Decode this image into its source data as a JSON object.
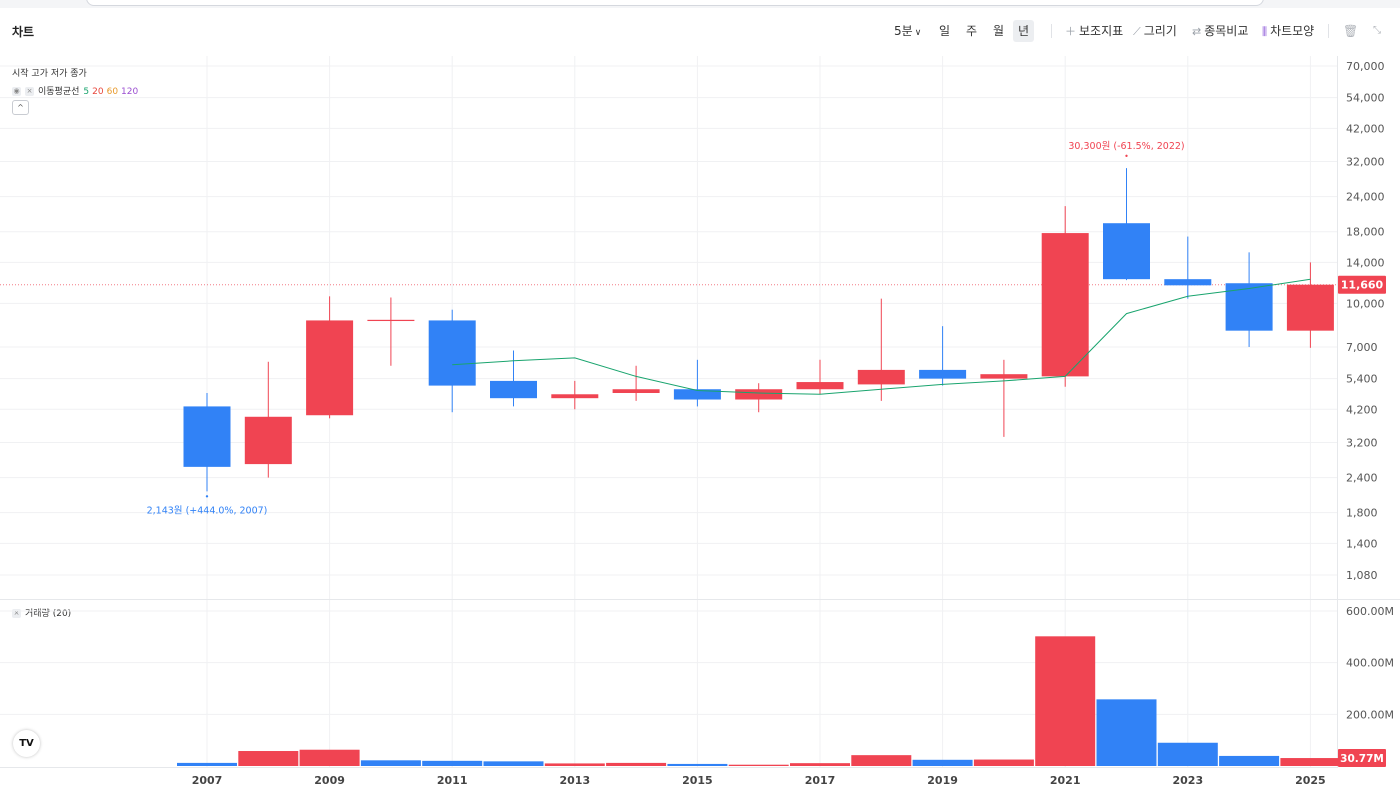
{
  "toolbar": {
    "title": "차트",
    "intervals": [
      "5분",
      "일",
      "주",
      "월",
      "년"
    ],
    "active_interval": "년",
    "tools": [
      {
        "label": "보조지표",
        "icon": "plus-icon"
      },
      {
        "label": "그리기",
        "icon": "pencil-icon"
      },
      {
        "label": "종목비교",
        "icon": "compare-icon"
      },
      {
        "label": "차트모양",
        "icon": "candle-icon"
      }
    ]
  },
  "legend": {
    "ohlc_labels": "시작 고가 저가 종가",
    "ma_label": "이동평균선",
    "ma_periods": [
      "5",
      "20",
      "60",
      "120"
    ],
    "ma_colors": [
      "#19a46e",
      "#e8473c",
      "#e89a2c",
      "#9b4fd1"
    ],
    "volume_label": "거래량 (20)"
  },
  "colors": {
    "up": "#f04452",
    "down": "#3182f6",
    "ma5": "#19a46e",
    "grid": "#f0f1f3"
  },
  "chart_data": {
    "type": "candlestick",
    "y_scale": "log",
    "years": [
      2007,
      2008,
      2009,
      2010,
      2011,
      2012,
      2013,
      2014,
      2015,
      2016,
      2017,
      2018,
      2019,
      2020,
      2021,
      2022,
      2023,
      2024,
      2025
    ],
    "candles": [
      {
        "year": 2007,
        "open": 4300,
        "high": 4800,
        "low": 2143,
        "close": 2620
      },
      {
        "year": 2008,
        "open": 2680,
        "high": 6200,
        "low": 2400,
        "close": 3950
      },
      {
        "year": 2009,
        "open": 4000,
        "high": 10600,
        "low": 3900,
        "close": 8700
      },
      {
        "year": 2010,
        "open": 8700,
        "high": 10500,
        "low": 6000,
        "close": 8700
      },
      {
        "year": 2011,
        "open": 8700,
        "high": 9500,
        "low": 4100,
        "close": 5100
      },
      {
        "year": 2012,
        "open": 5300,
        "high": 6800,
        "low": 4300,
        "close": 4600
      },
      {
        "year": 2013,
        "open": 4600,
        "high": 5300,
        "low": 4200,
        "close": 4750
      },
      {
        "year": 2014,
        "open": 4800,
        "high": 6000,
        "low": 4500,
        "close": 4950
      },
      {
        "year": 2015,
        "open": 4950,
        "high": 6300,
        "low": 4300,
        "close": 4550
      },
      {
        "year": 2016,
        "open": 4550,
        "high": 5200,
        "low": 4100,
        "close": 4950
      },
      {
        "year": 2017,
        "open": 4950,
        "high": 6300,
        "low": 4750,
        "close": 5250
      },
      {
        "year": 2018,
        "open": 5150,
        "high": 10400,
        "low": 4500,
        "close": 5800
      },
      {
        "year": 2019,
        "open": 5800,
        "high": 8300,
        "low": 5100,
        "close": 5400
      },
      {
        "year": 2020,
        "open": 5400,
        "high": 6300,
        "low": 3350,
        "close": 5600
      },
      {
        "year": 2021,
        "open": 5500,
        "high": 22200,
        "low": 5050,
        "close": 17800
      },
      {
        "year": 2022,
        "open": 19300,
        "high": 30300,
        "low": 12100,
        "close": 12200
      },
      {
        "year": 2023,
        "open": 12200,
        "high": 17300,
        "low": 10400,
        "close": 11600
      },
      {
        "year": 2024,
        "open": 11800,
        "high": 15200,
        "low": 7000,
        "close": 8000
      },
      {
        "year": 2025,
        "open": 8000,
        "high": 14000,
        "low": 6950,
        "close": 11660
      }
    ],
    "ma5": [
      null,
      null,
      null,
      null,
      6050,
      6250,
      6400,
      5500,
      4900,
      4800,
      4750,
      4950,
      5150,
      5300,
      5500,
      9200,
      10600,
      11300,
      12200
    ],
    "volume_millions": [
      {
        "year": 2007,
        "value": 12,
        "dir": "down"
      },
      {
        "year": 2008,
        "value": 58,
        "dir": "up"
      },
      {
        "year": 2009,
        "value": 63,
        "dir": "up"
      },
      {
        "year": 2010,
        "value": 22,
        "dir": "down"
      },
      {
        "year": 2011,
        "value": 20,
        "dir": "down"
      },
      {
        "year": 2012,
        "value": 18,
        "dir": "down"
      },
      {
        "year": 2013,
        "value": 10,
        "dir": "up"
      },
      {
        "year": 2014,
        "value": 12,
        "dir": "up"
      },
      {
        "year": 2015,
        "value": 8,
        "dir": "down"
      },
      {
        "year": 2016,
        "value": 5,
        "dir": "up"
      },
      {
        "year": 2017,
        "value": 11,
        "dir": "up"
      },
      {
        "year": 2018,
        "value": 42,
        "dir": "up"
      },
      {
        "year": 2019,
        "value": 24,
        "dir": "down"
      },
      {
        "year": 2020,
        "value": 25,
        "dir": "up"
      },
      {
        "year": 2021,
        "value": 502,
        "dir": "up"
      },
      {
        "year": 2022,
        "value": 258,
        "dir": "down"
      },
      {
        "year": 2023,
        "value": 90,
        "dir": "down"
      },
      {
        "year": 2024,
        "value": 39,
        "dir": "down"
      },
      {
        "year": 2025,
        "value": 30.77,
        "dir": "up"
      }
    ],
    "price_ticks": [
      "70,000",
      "54,000",
      "42,000",
      "32,000",
      "24,000",
      "18,000",
      "14,000",
      "10,000",
      "7,000",
      "5,400",
      "4,200",
      "3,200",
      "2,400",
      "1,800",
      "1,400",
      "1,080"
    ],
    "price_tick_values": [
      70000,
      54000,
      42000,
      32000,
      24000,
      18000,
      14000,
      10000,
      7000,
      5400,
      4200,
      3200,
      2400,
      1800,
      1400,
      1080
    ],
    "volume_ticks": [
      "600.00M",
      "400.00M",
      "200.00M"
    ],
    "volume_tick_values": [
      600,
      400,
      200
    ],
    "x_tick_labels": [
      "2007",
      "2009",
      "2011",
      "2013",
      "2015",
      "2017",
      "2019",
      "2021",
      "2023",
      "2025"
    ],
    "current_price": 11660,
    "current_price_label": "11,660",
    "current_volume_label": "30.77M",
    "annotation_high": "30,300원 (-61.5%, 2022)",
    "annotation_low": "2,143원 (+444.0%, 2007)"
  }
}
